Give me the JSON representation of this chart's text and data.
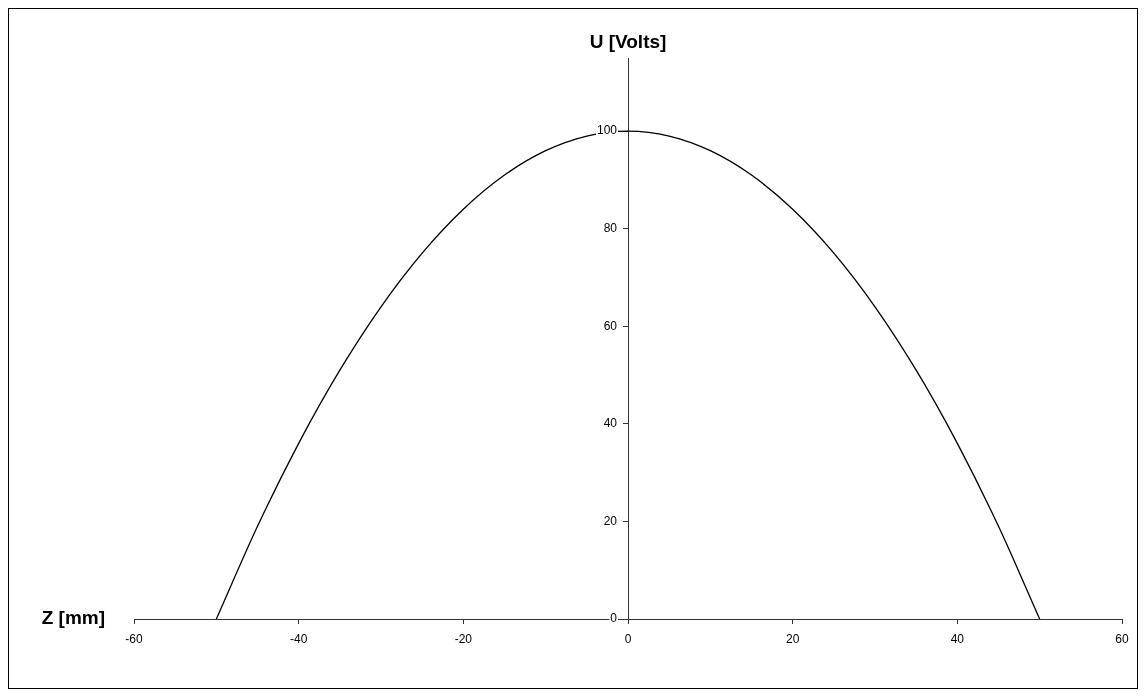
{
  "chart_data": {
    "type": "line",
    "xlabel": "Z [mm]",
    "ylabel": "U [Volts]",
    "x": [
      -50,
      -45,
      -40,
      -35,
      -30,
      -25,
      -20,
      -15,
      -10,
      -5,
      0,
      5,
      10,
      15,
      20,
      25,
      30,
      35,
      40,
      45,
      50
    ],
    "series": [
      {
        "color": "#000000",
        "values": [
          0,
          19,
          36,
          51,
          64,
          75,
          84,
          91,
          96,
          99,
          100,
          99,
          96,
          91,
          84,
          75,
          64,
          51,
          36,
          19,
          0
        ]
      }
    ],
    "xlim": [
      -60,
      60
    ],
    "xticks": [
      -60,
      -40,
      -20,
      0,
      20,
      40,
      60
    ],
    "ylim": [
      0,
      115
    ],
    "yticks": [
      0,
      20,
      40,
      60,
      80,
      100
    ],
    "marker": "none"
  }
}
